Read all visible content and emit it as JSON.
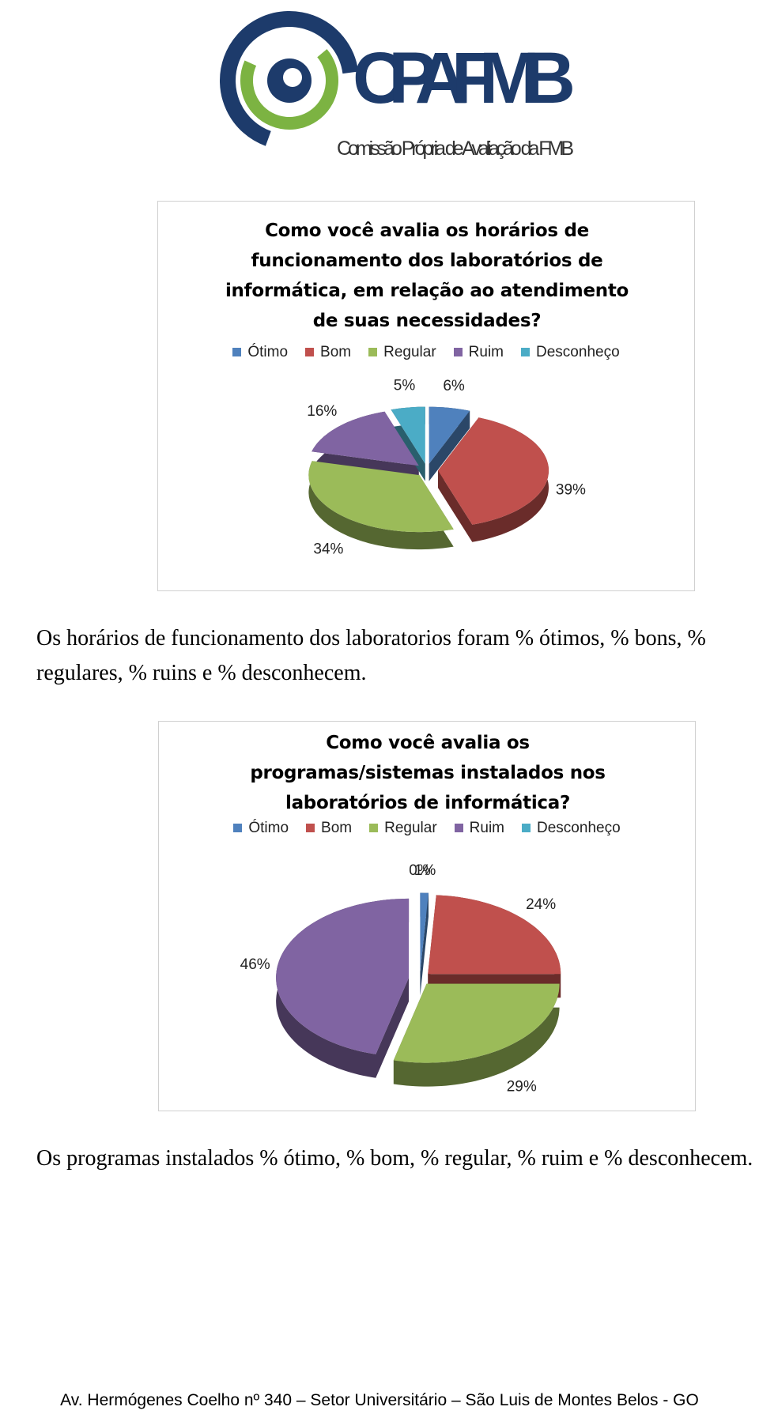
{
  "logo": {
    "title": "CPA FMB",
    "subtitle": "Comissão Própria de Avaliação da FMB"
  },
  "chart_data": [
    {
      "type": "pie",
      "title": "Como você avalia os horários de funcionamento dos laboratórios de informática, em relação ao atendimento de suas necessidades?",
      "categories": [
        "Ótimo",
        "Bom",
        "Regular",
        "Ruim",
        "Desconheço"
      ],
      "values": [
        6,
        39,
        34,
        16,
        5
      ],
      "value_labels": [
        "6%",
        "39%",
        "34%",
        "16%",
        "5%"
      ],
      "colors": [
        "#4f81bd",
        "#c0504d",
        "#9bbb59",
        "#8064a2",
        "#4bacc6"
      ],
      "legend": "top"
    },
    {
      "type": "pie",
      "title": "Como você avalia os programas/sistemas instalados nos laboratórios de informática?",
      "categories": [
        "Ótimo",
        "Bom",
        "Regular",
        "Ruim",
        "Desconheço"
      ],
      "values": [
        1,
        24,
        29,
        46,
        0
      ],
      "value_labels": [
        "1%",
        "24%",
        "29%",
        "46%",
        "0%"
      ],
      "colors": [
        "#4f81bd",
        "#c0504d",
        "#9bbb59",
        "#8064a2",
        "#4bacc6"
      ],
      "legend": "top"
    }
  ],
  "paragraphs": [
    "Os horários de funcionamento dos laboratorios foram % ótimos, % bons, % regulares, % ruins e % desconhecem.",
    "Os programas instalados % ótimo, % bom, % regular, % ruim e % desconhecem."
  ],
  "footer": "Av. Hermógenes Coelho nº 340 – Setor Universitário – São Luis de Montes Belos - GO"
}
